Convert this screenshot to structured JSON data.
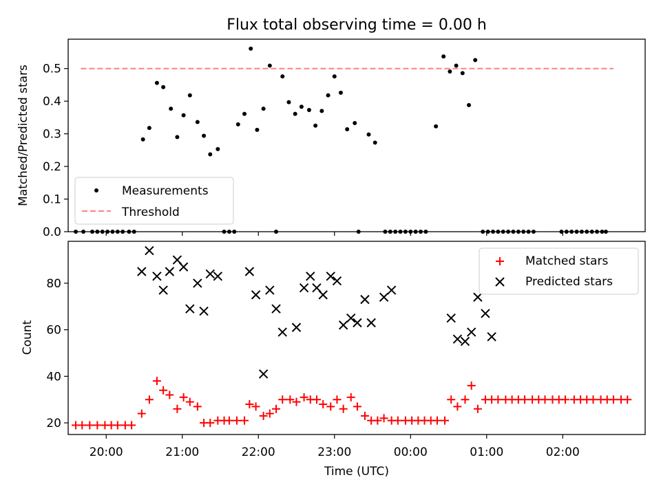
{
  "chart_data": [
    {
      "type": "scatter",
      "title": "Flux total observing time = 0.00 h",
      "xlabel": "",
      "ylabel": "Matched/Predicted stars",
      "ylim": [
        0,
        0.59
      ],
      "yticks": [
        0.0,
        0.1,
        0.2,
        0.3,
        0.4,
        0.5
      ],
      "ytick_labels": [
        "0.0",
        "0.1",
        "0.2",
        "0.3",
        "0.4",
        "0.5"
      ],
      "legend": {
        "placement": "lower-left",
        "entries": [
          "Measurements",
          "Threshold"
        ]
      },
      "series": [
        {
          "name": "Measurements",
          "marker": "dot",
          "color": "#000000",
          "points": [
            [
              "19:36",
              0.0
            ],
            [
              "19:42",
              0.0
            ],
            [
              "19:49",
              0.0
            ],
            [
              "19:53",
              0.0
            ],
            [
              "19:57",
              0.0
            ],
            [
              "20:01",
              0.0
            ],
            [
              "20:05",
              0.0
            ],
            [
              "20:09",
              0.0
            ],
            [
              "20:13",
              0.0
            ],
            [
              "20:18",
              0.0
            ],
            [
              "20:22",
              0.0
            ],
            [
              "20:29",
              0.283
            ],
            [
              "20:34",
              0.318
            ],
            [
              "20:40",
              0.456
            ],
            [
              "20:45",
              0.443
            ],
            [
              "20:51",
              0.377
            ],
            [
              "20:56",
              0.29
            ],
            [
              "21:01",
              0.357
            ],
            [
              "21:06",
              0.418
            ],
            [
              "21:12",
              0.336
            ],
            [
              "21:17",
              0.294
            ],
            [
              "21:22",
              0.237
            ],
            [
              "21:28",
              0.253
            ],
            [
              "21:33",
              0.0
            ],
            [
              "21:37",
              0.0
            ],
            [
              "21:41",
              0.0
            ],
            [
              "21:44",
              0.329
            ],
            [
              "21:49",
              0.361
            ],
            [
              "21:54",
              0.561
            ],
            [
              "21:59",
              0.312
            ],
            [
              "22:04",
              0.377
            ],
            [
              "22:09",
              0.509
            ],
            [
              "22:14",
              0.0
            ],
            [
              "22:19",
              0.476
            ],
            [
              "22:24",
              0.397
            ],
            [
              "22:29",
              0.361
            ],
            [
              "22:34",
              0.383
            ],
            [
              "22:40",
              0.373
            ],
            [
              "22:45",
              0.325
            ],
            [
              "22:50",
              0.37
            ],
            [
              "22:55",
              0.418
            ],
            [
              "23:00",
              0.476
            ],
            [
              "23:05",
              0.426
            ],
            [
              "23:10",
              0.314
            ],
            [
              "23:16",
              0.333
            ],
            [
              "23:19",
              0.0
            ],
            [
              "23:27",
              0.298
            ],
            [
              "23:32",
              0.273
            ],
            [
              "23:40",
              0.0
            ],
            [
              "23:44",
              0.0
            ],
            [
              "23:48",
              0.0
            ],
            [
              "23:52",
              0.0
            ],
            [
              "23:56",
              0.0
            ],
            [
              "00:00",
              0.0
            ],
            [
              "00:04",
              0.0
            ],
            [
              "00:08",
              0.0
            ],
            [
              "00:12",
              0.0
            ],
            [
              "00:20",
              0.323
            ],
            [
              "00:26",
              0.537
            ],
            [
              "00:31",
              0.491
            ],
            [
              "00:36",
              0.509
            ],
            [
              "00:41",
              0.486
            ],
            [
              "00:46",
              0.388
            ],
            [
              "00:51",
              0.526
            ],
            [
              "00:57",
              0.0
            ],
            [
              "01:01",
              0.0
            ],
            [
              "01:05",
              0.0
            ],
            [
              "01:09",
              0.0
            ],
            [
              "01:13",
              0.0
            ],
            [
              "01:17",
              0.0
            ],
            [
              "01:21",
              0.0
            ],
            [
              "01:25",
              0.0
            ],
            [
              "01:29",
              0.0
            ],
            [
              "01:33",
              0.0
            ],
            [
              "01:37",
              0.0
            ],
            [
              "01:59",
              0.0
            ],
            [
              "02:03",
              0.0
            ],
            [
              "02:07",
              0.0
            ],
            [
              "02:11",
              0.0
            ],
            [
              "02:15",
              0.0
            ],
            [
              "02:19",
              0.0
            ],
            [
              "02:23",
              0.0
            ],
            [
              "02:27",
              0.0
            ],
            [
              "02:31",
              0.0
            ],
            [
              "02:34",
              0.0
            ]
          ]
        },
        {
          "name": "Threshold",
          "marker": "dashed-line",
          "color": "#ff7f7f",
          "points": [
            [
              "19:40",
              0.5
            ],
            [
              "02:40",
              0.5
            ]
          ]
        }
      ]
    },
    {
      "type": "scatter",
      "title": "",
      "xlabel": "Time (UTC)",
      "ylabel": "Count",
      "ylim": [
        15,
        98
      ],
      "yticks": [
        20,
        40,
        60,
        80
      ],
      "ytick_labels": [
        "20",
        "40",
        "60",
        "80"
      ],
      "xlim": [
        "19:30",
        "03:05"
      ],
      "xticks": [
        "20:00",
        "21:00",
        "22:00",
        "23:00",
        "00:00",
        "01:00",
        "02:00"
      ],
      "legend": {
        "placement": "upper-right",
        "entries": [
          "Matched stars",
          "Predicted stars"
        ]
      },
      "series": [
        {
          "name": "Matched stars",
          "marker": "plus",
          "color": "#ff0000",
          "points": [
            [
              "19:36",
              19
            ],
            [
              "19:41",
              19
            ],
            [
              "19:47",
              19
            ],
            [
              "19:53",
              19
            ],
            [
              "19:59",
              19
            ],
            [
              "20:04",
              19
            ],
            [
              "20:09",
              19
            ],
            [
              "20:15",
              19
            ],
            [
              "20:20",
              19
            ],
            [
              "20:28",
              24
            ],
            [
              "20:34",
              30
            ],
            [
              "20:40",
              38
            ],
            [
              "20:45",
              34
            ],
            [
              "20:50",
              32
            ],
            [
              "20:56",
              26
            ],
            [
              "21:01",
              31
            ],
            [
              "21:06",
              29
            ],
            [
              "21:12",
              27
            ],
            [
              "21:17",
              20
            ],
            [
              "21:22",
              20
            ],
            [
              "21:28",
              21
            ],
            [
              "21:33",
              21
            ],
            [
              "21:37",
              21
            ],
            [
              "21:43",
              21
            ],
            [
              "21:49",
              21
            ],
            [
              "21:53",
              28
            ],
            [
              "21:58",
              27
            ],
            [
              "22:04",
              23
            ],
            [
              "22:09",
              24
            ],
            [
              "22:14",
              26
            ],
            [
              "22:19",
              30
            ],
            [
              "22:25",
              30
            ],
            [
              "22:30",
              29
            ],
            [
              "22:36",
              31
            ],
            [
              "22:41",
              30
            ],
            [
              "22:46",
              30
            ],
            [
              "22:51",
              28
            ],
            [
              "22:57",
              27
            ],
            [
              "23:02",
              30
            ],
            [
              "23:07",
              26
            ],
            [
              "23:13",
              31
            ],
            [
              "23:18",
              27
            ],
            [
              "23:24",
              23
            ],
            [
              "23:29",
              21
            ],
            [
              "23:34",
              21
            ],
            [
              "23:39",
              22
            ],
            [
              "23:45",
              21
            ],
            [
              "23:50",
              21
            ],
            [
              "23:56",
              21
            ],
            [
              "00:01",
              21
            ],
            [
              "00:06",
              21
            ],
            [
              "00:11",
              21
            ],
            [
              "00:16",
              21
            ],
            [
              "00:21",
              21
            ],
            [
              "00:27",
              21
            ],
            [
              "00:32",
              30
            ],
            [
              "00:37",
              27
            ],
            [
              "00:43",
              30
            ],
            [
              "00:48",
              36
            ],
            [
              "00:53",
              26
            ],
            [
              "00:59",
              30
            ],
            [
              "01:04",
              30
            ],
            [
              "01:09",
              30
            ],
            [
              "01:15",
              30
            ],
            [
              "01:20",
              30
            ],
            [
              "01:25",
              30
            ],
            [
              "01:30",
              30
            ],
            [
              "01:36",
              30
            ],
            [
              "01:41",
              30
            ],
            [
              "01:46",
              30
            ],
            [
              "01:52",
              30
            ],
            [
              "01:57",
              30
            ],
            [
              "02:02",
              30
            ],
            [
              "02:09",
              30
            ],
            [
              "02:14",
              30
            ],
            [
              "02:19",
              30
            ],
            [
              "02:24",
              30
            ],
            [
              "02:30",
              30
            ],
            [
              "02:35",
              30
            ],
            [
              "02:40",
              30
            ],
            [
              "02:46",
              30
            ],
            [
              "02:51",
              30
            ]
          ]
        },
        {
          "name": "Predicted stars",
          "marker": "x",
          "color": "#000000",
          "points": [
            [
              "20:28",
              85
            ],
            [
              "20:34",
              94
            ],
            [
              "20:40",
              83
            ],
            [
              "20:45",
              77
            ],
            [
              "20:50",
              85
            ],
            [
              "20:56",
              90
            ],
            [
              "21:01",
              87
            ],
            [
              "21:06",
              69
            ],
            [
              "21:12",
              80
            ],
            [
              "21:17",
              68
            ],
            [
              "21:22",
              84
            ],
            [
              "21:28",
              83
            ],
            [
              "21:53",
              85
            ],
            [
              "21:58",
              75
            ],
            [
              "22:04",
              41
            ],
            [
              "22:09",
              77
            ],
            [
              "22:14",
              69
            ],
            [
              "22:19",
              59
            ],
            [
              "22:30",
              61
            ],
            [
              "22:36",
              78
            ],
            [
              "22:41",
              83
            ],
            [
              "22:46",
              78
            ],
            [
              "22:51",
              75
            ],
            [
              "22:57",
              83
            ],
            [
              "23:02",
              81
            ],
            [
              "23:07",
              62
            ],
            [
              "23:13",
              65
            ],
            [
              "23:18",
              63
            ],
            [
              "23:24",
              73
            ],
            [
              "23:29",
              63
            ],
            [
              "23:39",
              74
            ],
            [
              "23:45",
              77
            ],
            [
              "00:32",
              65
            ],
            [
              "00:37",
              56
            ],
            [
              "00:43",
              55
            ],
            [
              "00:48",
              59
            ],
            [
              "00:53",
              74
            ],
            [
              "00:59",
              67
            ],
            [
              "01:04",
              57
            ]
          ]
        }
      ]
    }
  ]
}
